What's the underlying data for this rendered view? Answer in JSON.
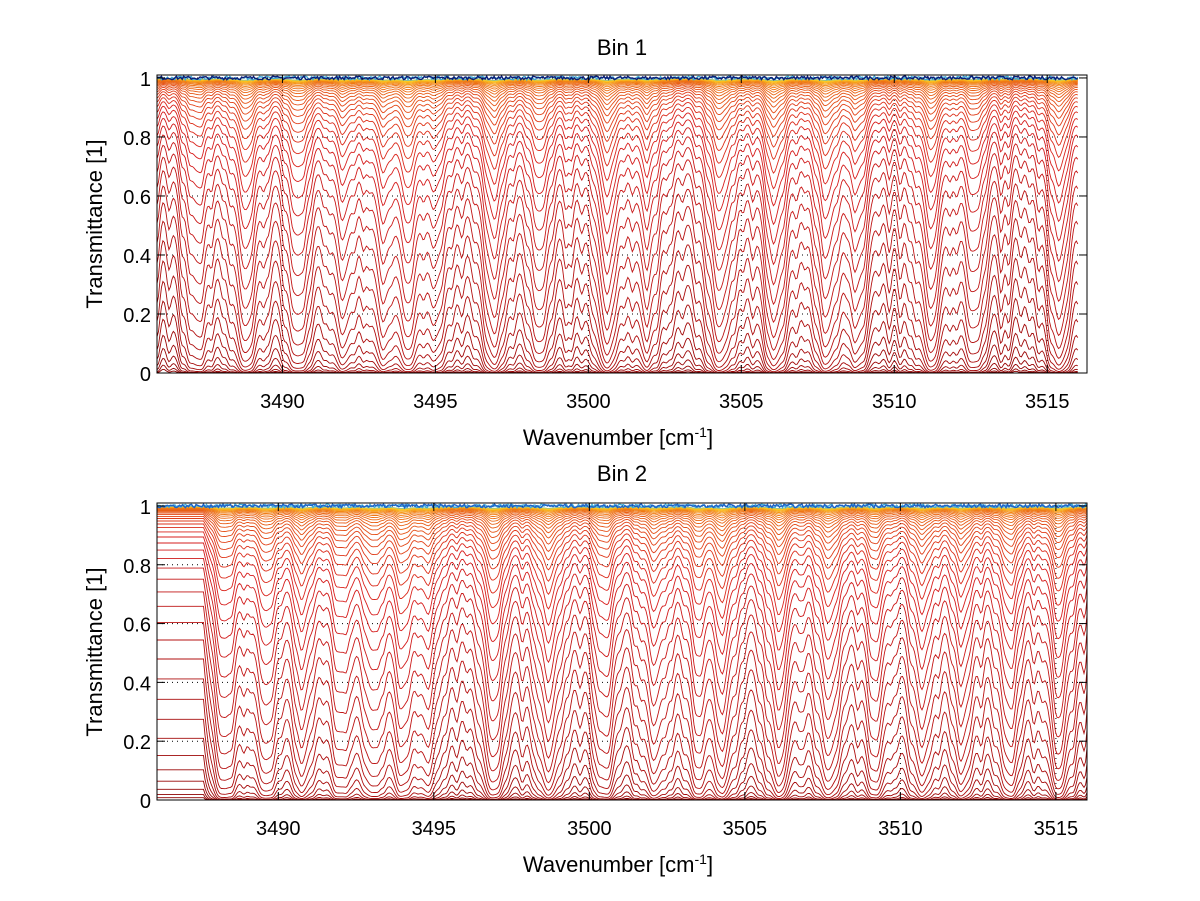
{
  "chart_data": [
    {
      "type": "line",
      "title": "Bin 1",
      "xlabel": "Wavenumber [cm",
      "xlabel_sup": "-1",
      "xlabel_suffix": "]",
      "ylabel": "Transmittance [1]",
      "xlim": [
        3485.9,
        3516.3
      ],
      "ylim": [
        0,
        1.01
      ],
      "xticks": [
        3490,
        3495,
        3500,
        3505,
        3510,
        3515
      ],
      "xtick_labels": [
        "3490",
        "3495",
        "3500",
        "3505",
        "3510",
        "3515"
      ],
      "yticks": [
        0,
        0.2,
        0.4,
        0.6,
        0.8,
        1
      ],
      "ytick_labels": [
        "0",
        "0.2",
        "0.4",
        "0.6",
        "0.8",
        "1"
      ],
      "grid": "dotted",
      "legend": "none",
      "series_description": "Family of ~45 transmittance spectra colored from dark red (lowest transmittance) through red, orange, yellow to cyan/dark blue (near 1)",
      "series_count": 45,
      "data_xmax": 3516.0,
      "absorption_lines": [
        {
          "x": 3487.2,
          "strength": 0.55
        },
        {
          "x": 3488.8,
          "strength": 1.0
        },
        {
          "x": 3490.5,
          "strength": 0.8
        },
        {
          "x": 3492.0,
          "strength": 0.6
        },
        {
          "x": 3493.3,
          "strength": 0.7
        },
        {
          "x": 3494.1,
          "strength": 1.0
        },
        {
          "x": 3495.0,
          "strength": 0.6
        },
        {
          "x": 3496.9,
          "strength": 1.0
        },
        {
          "x": 3498.4,
          "strength": 0.75
        },
        {
          "x": 3500.6,
          "strength": 1.0
        },
        {
          "x": 3501.9,
          "strength": 0.6
        },
        {
          "x": 3504.3,
          "strength": 1.0
        },
        {
          "x": 3506.1,
          "strength": 1.0
        },
        {
          "x": 3507.8,
          "strength": 1.0
        },
        {
          "x": 3508.8,
          "strength": 0.6
        },
        {
          "x": 3511.2,
          "strength": 0.9
        },
        {
          "x": 3512.6,
          "strength": 0.6
        },
        {
          "x": 3515.4,
          "strength": 0.9
        }
      ],
      "colors": {
        "darkest": "#8b0000",
        "red": "#d81e1e",
        "orange": "#f07d14",
        "yellow": "#ffd21e",
        "cyan": "#46b4dc",
        "dark_blue": "#0a1e78"
      }
    },
    {
      "type": "line",
      "title": "Bin 2",
      "xlabel": "Wavenumber [cm",
      "xlabel_sup": "-1",
      "xlabel_suffix": "]",
      "ylabel": "Transmittance [1]",
      "xlim": [
        3486.1,
        3516.0
      ],
      "ylim": [
        0,
        1.01
      ],
      "xticks": [
        3490,
        3495,
        3500,
        3505,
        3510,
        3515
      ],
      "xtick_labels": [
        "3490",
        "3495",
        "3500",
        "3505",
        "3510",
        "3515"
      ],
      "yticks": [
        0,
        0.2,
        0.4,
        0.6,
        0.8,
        1
      ],
      "ytick_labels": [
        "0",
        "0.2",
        "0.4",
        "0.6",
        "0.8",
        "1"
      ],
      "grid": "dotted",
      "legend": "none",
      "series_description": "Family of ~45 transmittance spectra; flat step region at the low-wavenumber edge (3486.1-3488), colored from dark red through red, orange, yellow to cyan/blue",
      "series_count": 45,
      "data_xmax": 3516.0,
      "flat_region": [
        3486.1,
        3488.0
      ],
      "absorption_lines": [
        {
          "x": 3487.2,
          "strength": 0.9
        },
        {
          "x": 3488.3,
          "strength": 0.7
        },
        {
          "x": 3489.6,
          "strength": 0.8
        },
        {
          "x": 3490.8,
          "strength": 0.7
        },
        {
          "x": 3492.0,
          "strength": 0.6
        },
        {
          "x": 3493.0,
          "strength": 0.8
        },
        {
          "x": 3494.0,
          "strength": 0.9
        },
        {
          "x": 3494.8,
          "strength": 0.7
        },
        {
          "x": 3496.9,
          "strength": 1.0
        },
        {
          "x": 3498.7,
          "strength": 1.0
        },
        {
          "x": 3500.5,
          "strength": 0.7
        },
        {
          "x": 3502.1,
          "strength": 0.8
        },
        {
          "x": 3503.5,
          "strength": 0.7
        },
        {
          "x": 3504.3,
          "strength": 0.9
        },
        {
          "x": 3506.1,
          "strength": 1.0
        },
        {
          "x": 3507.7,
          "strength": 1.0
        },
        {
          "x": 3509.2,
          "strength": 0.7
        },
        {
          "x": 3510.7,
          "strength": 0.8
        },
        {
          "x": 3512.0,
          "strength": 0.7
        },
        {
          "x": 3513.5,
          "strength": 0.8
        },
        {
          "x": 3515.1,
          "strength": 0.9
        }
      ],
      "colors": {
        "darkest": "#8b0000",
        "red": "#d81e1e",
        "orange": "#f07d14",
        "yellow": "#ffd21e",
        "cyan": "#46b4dc",
        "dark_blue": "#1e64c8"
      }
    }
  ]
}
